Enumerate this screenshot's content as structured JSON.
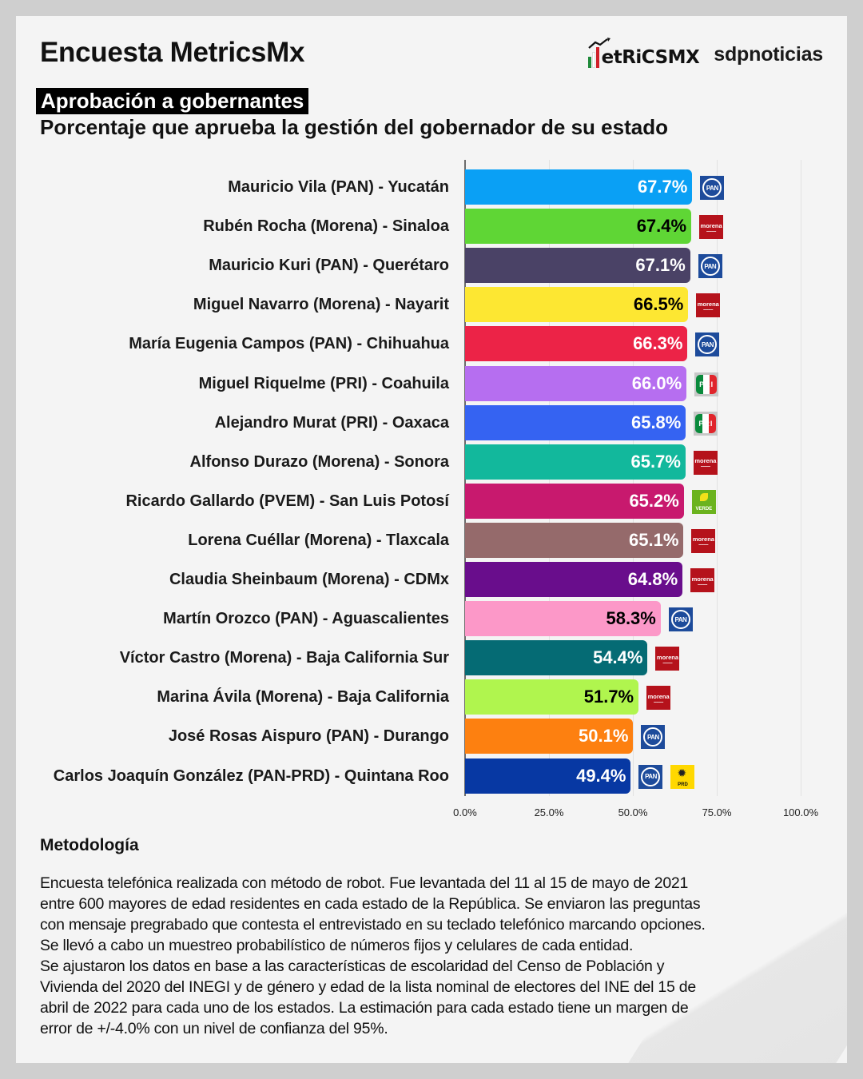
{
  "header": {
    "title": "Encuesta MetricsMx",
    "logo_metrics": "etRiCSMX",
    "logo_sdp": "sdpnoticias",
    "badge": "Aprobación a gobernantes",
    "subtitle": "Porcentaje que aprueba la gestión del gobernador de su estado"
  },
  "chart_data": {
    "type": "bar",
    "orientation": "horizontal",
    "title": "Aprobación a gobernantes",
    "subtitle": "Porcentaje que aprueba la gestión del gobernador de su estado",
    "xlabel": "",
    "ylabel": "",
    "xlim": [
      0,
      100
    ],
    "x_ticks": [
      "0.0%",
      "25.0%",
      "50.0%",
      "75.0%",
      "100.0%"
    ],
    "grid": true,
    "legend": null,
    "categories": [
      "Mauricio Vila (PAN) - Yucatán",
      "Rubén Rocha (Morena) - Sinaloa",
      "Mauricio Kuri (PAN) - Querétaro",
      "Miguel Navarro (Morena) - Nayarit",
      "María Eugenia Campos (PAN) - Chihuahua",
      "Miguel Riquelme (PRI) - Coahuila",
      "Alejandro Murat (PRI) - Oaxaca",
      "Alfonso Durazo (Morena) - Sonora",
      "Ricardo Gallardo (PVEM) - San Luis Potosí",
      "Lorena Cuéllar (Morena) - Tlaxcala",
      "Claudia Sheinbaum (Morena) - CDMx",
      "Martín Orozco (PAN) - Aguascalientes",
      "Víctor Castro (Morena) - Baja California Sur",
      "Marina Ávila (Morena) - Baja California",
      "José Rosas Aispuro (PAN) - Durango",
      "Carlos Joaquín González (PAN-PRD) - Quintana Roo"
    ],
    "values": [
      67.7,
      67.4,
      67.1,
      66.5,
      66.3,
      66.0,
      65.8,
      65.7,
      65.2,
      65.1,
      64.8,
      58.3,
      54.4,
      51.7,
      50.1,
      49.4
    ],
    "value_labels": [
      "67.7%",
      "67.4%",
      "67.1%",
      "66.5%",
      "66.3%",
      "66.0%",
      "65.8%",
      "65.7%",
      "65.2%",
      "65.1%",
      "64.8%",
      "58.3%",
      "54.4%",
      "51.7%",
      "50.1%",
      "49.4%"
    ],
    "bar_colors": [
      "#0aa0f5",
      "#5fd635",
      "#4a4266",
      "#fde732",
      "#ec2347",
      "#b66ef0",
      "#3563f2",
      "#12b89c",
      "#c8196e",
      "#956a6b",
      "#690d8c",
      "#fc98c8",
      "#056b74",
      "#b0f54e",
      "#fd8010",
      "#0738a3"
    ],
    "label_colors": [
      "#ffffff",
      "#000000",
      "#ffffff",
      "#000000",
      "#ffffff",
      "#ffffff",
      "#ffffff",
      "#ffffff",
      "#ffffff",
      "#ffffff",
      "#ffffff",
      "#000000",
      "#ffffff",
      "#000000",
      "#ffffff",
      "#ffffff"
    ],
    "party_icons": [
      [
        "pan-logo-icon"
      ],
      [
        "morena-logo-icon"
      ],
      [
        "pan-logo-icon"
      ],
      [
        "morena-logo-icon"
      ],
      [
        "pan-logo-icon"
      ],
      [
        "pri-logo-icon"
      ],
      [
        "pri-logo-icon"
      ],
      [
        "morena-logo-icon"
      ],
      [
        "verde-logo-icon"
      ],
      [
        "morena-logo-icon"
      ],
      [
        "morena-logo-icon"
      ],
      [
        "pan-logo-icon"
      ],
      [
        "morena-logo-icon"
      ],
      [
        "morena-logo-icon"
      ],
      [
        "pan-logo-icon"
      ],
      [
        "pan-logo-icon",
        "prd-logo-icon"
      ]
    ]
  },
  "party_text": {
    "pan": "PAN",
    "morena": "morena",
    "pri": "PRI",
    "verde": "VERDE",
    "prd": "PRD"
  },
  "methodology": {
    "title": "Metodología",
    "lines": [
      "Encuesta telefónica realizada con método de robot. Fue levantada del 11 al 15 de mayo de 2021",
      "entre 600 mayores de edad residentes en cada estado de la República. Se enviaron las preguntas",
      "con mensaje pregrabado que contesta el entrevistado en su teclado telefónico marcando opciones.",
      "Se llevó a cabo un muestreo probabilístico de números fijos y celulares de cada entidad.",
      "Se ajustaron los datos en base a las características de escolaridad del Censo de Población y",
      "Vivienda del 2020 del INEGI y de género y edad de la lista nominal de electores del INE del 15 de",
      "abril de 2022 para cada uno de los estados. La estimación para cada estado tiene un margen de",
      "error de +/-4.0% con un nivel de confianza del 95%."
    ]
  }
}
